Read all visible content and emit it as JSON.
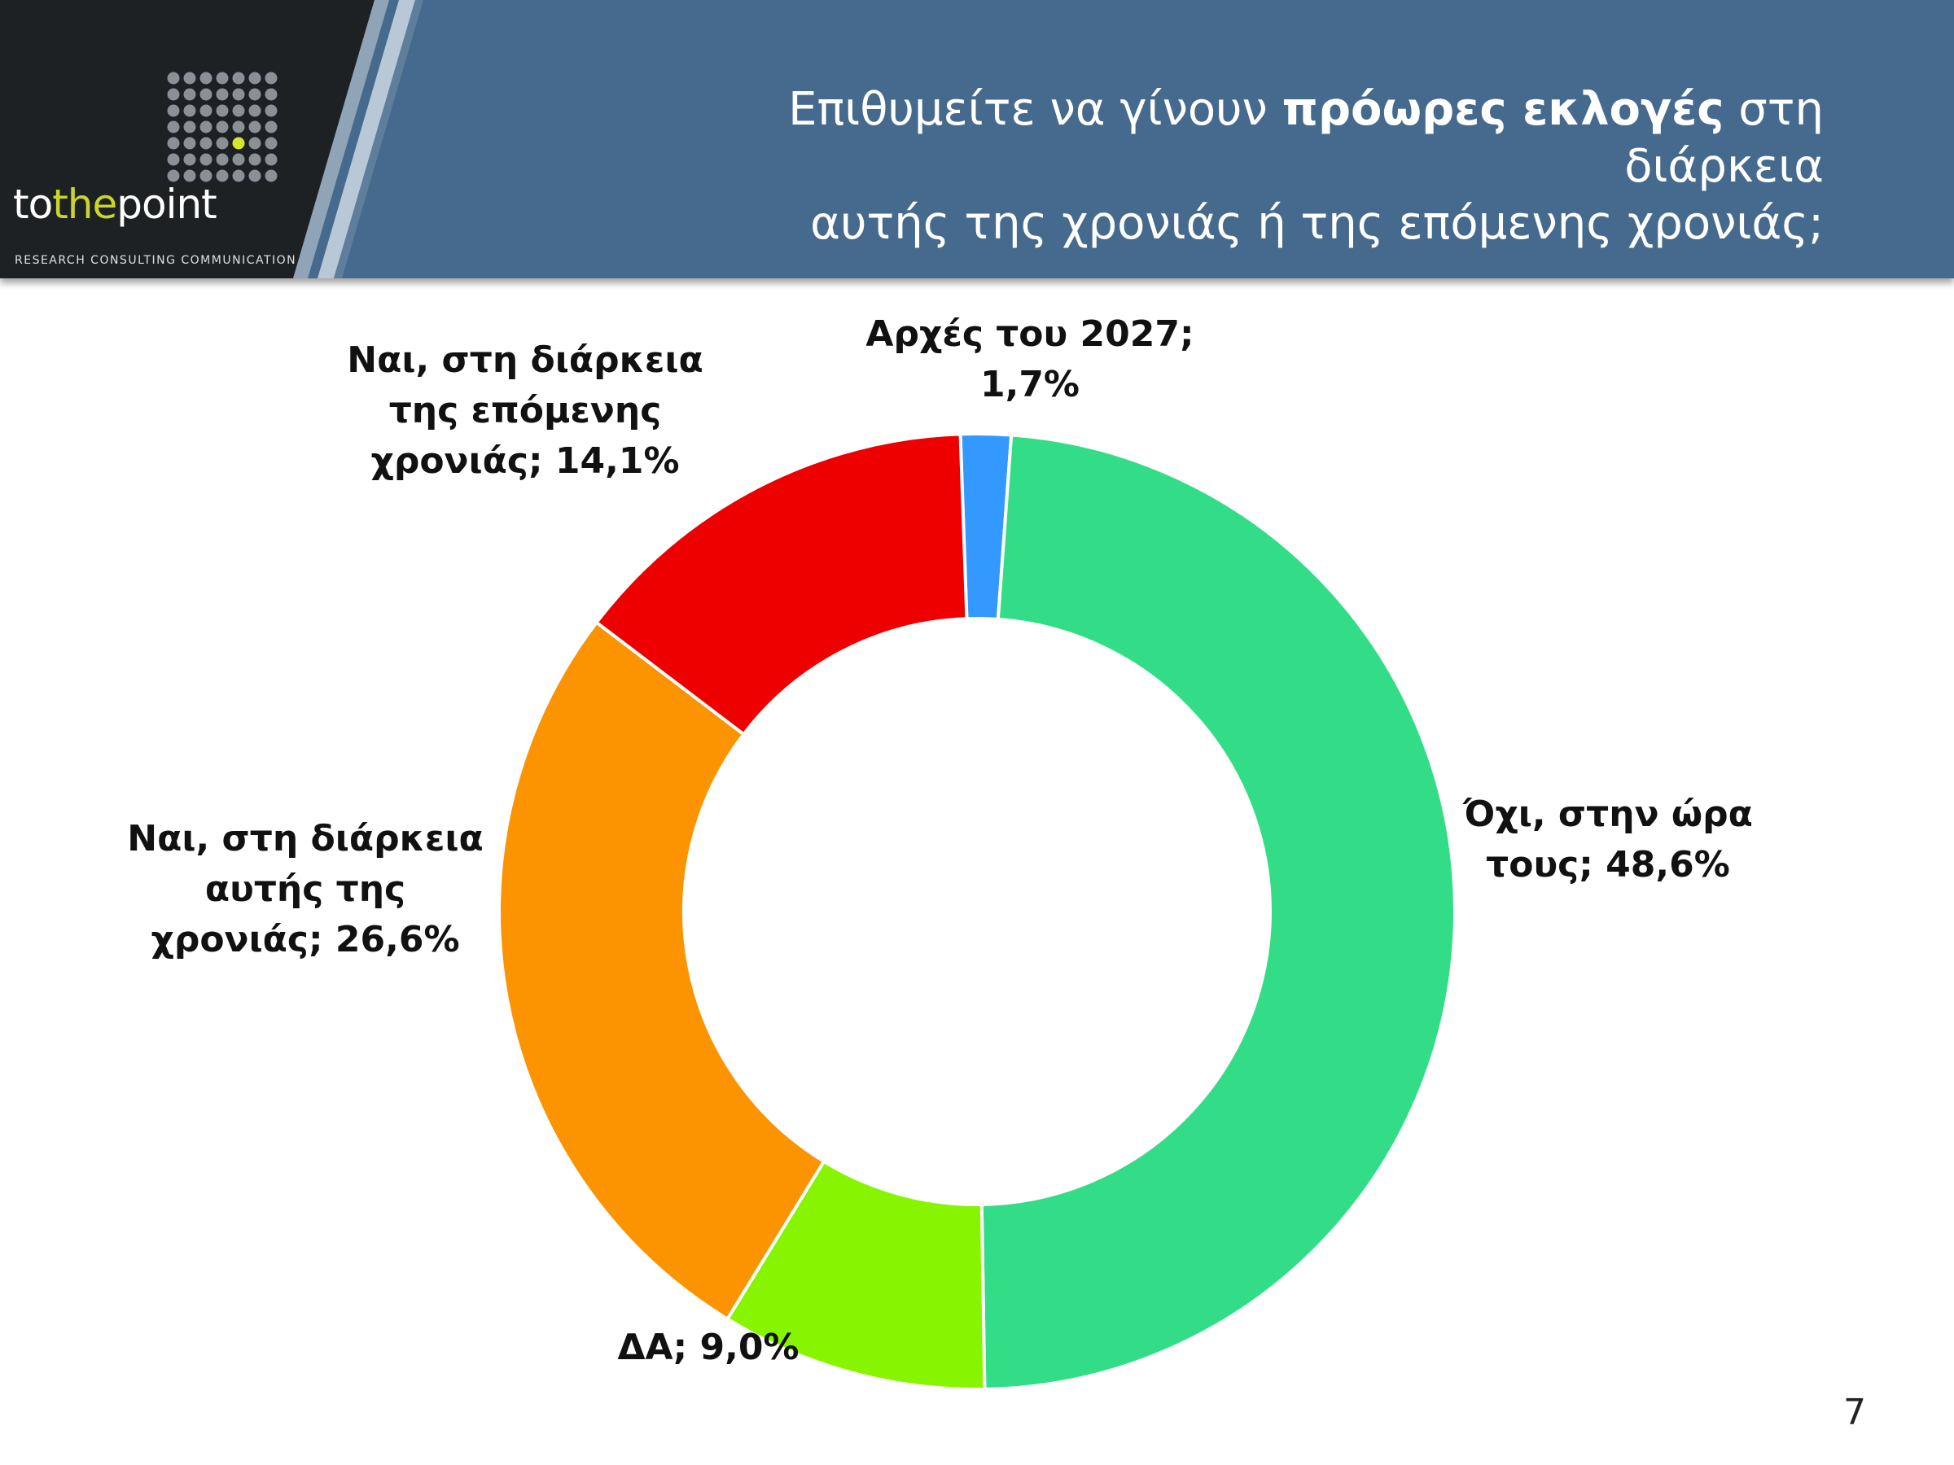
{
  "brand": {
    "name_part1": "to",
    "name_part2": "the",
    "name_part3": "point",
    "tagline": "RESEARCH  CONSULTING  COMMUNICATION"
  },
  "header": {
    "title_part1": "Επιθυμείτε να γίνουν ",
    "title_bold": "πρόωρες εκλογές",
    "title_part2": " στη διάρκεια",
    "title_line2": "αυτής της χρονιάς ή της επόμενης χρονιάς;"
  },
  "page_number": "7",
  "chart_data": {
    "type": "pie",
    "donut": true,
    "start_angle_deg": -2,
    "slices": [
      {
        "label_line1": "Αρχές του 2027;",
        "label_line2": "1,7%",
        "value": 1.7,
        "color": "#3399ff"
      },
      {
        "label_line1": "Όχι, στην ώρα",
        "label_line2": "τους; 48,6%",
        "value": 48.6,
        "color": "#33dd88"
      },
      {
        "label_line1": "ΔΑ; 9,0%",
        "label_line2": "",
        "value": 9.0,
        "color": "#88f500"
      },
      {
        "label_line1": "Ναι, στη διάρκεια",
        "label_line2": "αυτής της",
        "label_line3": "χρονιάς; 26,6%",
        "value": 26.6,
        "color": "#fb9400"
      },
      {
        "label_line1": "Ναι, στη διάρκεια",
        "label_line2": "της επόμενης",
        "label_line3": "χρονιάς; 14,1%",
        "value": 14.1,
        "color": "#ee0000"
      }
    ]
  }
}
